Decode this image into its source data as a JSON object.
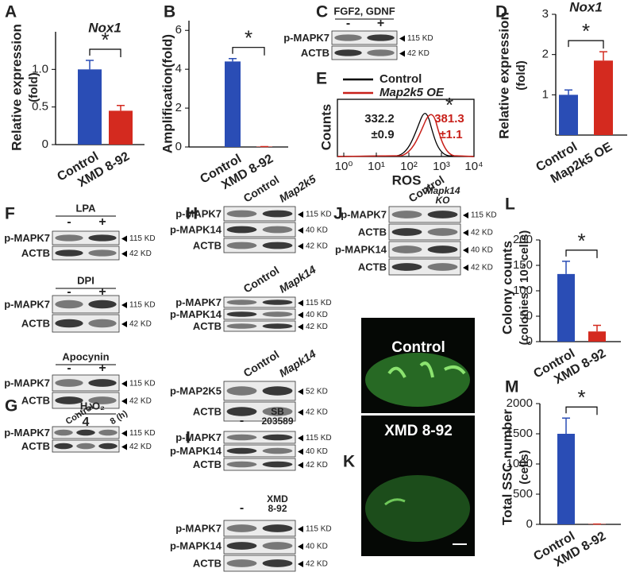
{
  "chart_data": [
    {
      "type": "bar",
      "panel": "A",
      "title": "Nox1",
      "ylabel": [
        "Relative expression",
        "(fold)"
      ],
      "categories": [
        "Control",
        "XMD 8-92"
      ],
      "values": [
        1.0,
        0.45
      ],
      "errors": [
        0.12,
        0.07
      ],
      "colors": [
        "#2a4db5",
        "#d42a1f"
      ],
      "ylim": [
        0,
        1.5
      ],
      "yticks": [
        0,
        0.5,
        {
          "value": 1,
          "label": "1.0"
        }
      ],
      "annotation": "*"
    },
    {
      "type": "bar",
      "panel": "B",
      "ylabel": [
        "Amplification(fold)"
      ],
      "categories": [
        "Control",
        "XMD 8-92"
      ],
      "values": [
        4.4,
        0.02
      ],
      "errors": [
        0.15,
        0
      ],
      "colors": [
        "#2a4db5",
        "#d42a1f"
      ],
      "ylim": [
        0,
        6.5
      ],
      "yticks": [
        0,
        2,
        4,
        6
      ],
      "annotation": "*"
    },
    {
      "type": "bar",
      "panel": "D",
      "title": "Nox1",
      "ylabel": [
        "Relative expression",
        "(fold)"
      ],
      "categories": [
        "Control",
        "Map2k5 OE"
      ],
      "values": [
        1.0,
        1.85
      ],
      "errors": [
        0.12,
        0.22
      ],
      "colors": [
        "#2a4db5",
        "#d42a1f"
      ],
      "ylim": [
        0,
        3
      ],
      "yticks": [
        1,
        2,
        3
      ],
      "annotation": "*"
    },
    {
      "type": "bar",
      "panel": "L",
      "ylabel": [
        "Colony counts",
        "(colonies / 10⁵ cells)"
      ],
      "categories": [
        "Control",
        "XMD 8-92"
      ],
      "values": [
        133,
        20
      ],
      "errors": [
        25,
        12
      ],
      "colors": [
        "#2a4db5",
        "#d42a1f"
      ],
      "ylim": [
        0,
        200
      ],
      "yticks": [
        0,
        50,
        100,
        150,
        200
      ],
      "annotation": "*"
    },
    {
      "type": "bar",
      "panel": "M",
      "ylabel": [
        "Total SSC number",
        "(cells)"
      ],
      "categories": [
        "Control",
        "XMD 8-92"
      ],
      "values": [
        1500,
        5
      ],
      "errors": [
        260,
        0
      ],
      "colors": [
        "#2a4db5",
        "#d42a1f"
      ],
      "ylim": [
        0,
        2000
      ],
      "yticks": [
        0,
        500,
        1000,
        1500,
        2000
      ],
      "annotation": "*"
    }
  ],
  "flow": {
    "panel": "E",
    "legend": [
      "Control",
      "Map2k5 OE"
    ],
    "ylabel": "Counts",
    "xlabel": "ROS",
    "xtick_labels": [
      "10⁰",
      "10¹",
      "10²",
      "10³",
      "10⁴"
    ],
    "stats": [
      [
        "332.2",
        "±0.9"
      ],
      [
        "381.3",
        "±1.1"
      ]
    ],
    "annotation": "*"
  },
  "blots": [
    {
      "panel": "C",
      "groups": [
        {
          "treatment": "FGF2, GDNF",
          "lanes": [
            "-",
            "+"
          ],
          "rows": [
            {
              "label": "p-MAPK7",
              "size": "115 KD"
            },
            {
              "label": "ACTB",
              "size": "42 KD"
            }
          ]
        }
      ]
    },
    {
      "panel": "F",
      "groups": [
        {
          "treatment": "LPA",
          "lanes": [
            "-",
            "+"
          ],
          "rows": [
            {
              "label": "p-MAPK7",
              "size": "115 KD"
            },
            {
              "label": "ACTB",
              "size": "42 KD"
            }
          ]
        },
        {
          "treatment": "DPI",
          "lanes": [
            "-",
            "+"
          ],
          "rows": [
            {
              "label": "p-MAPK7",
              "size": "115 KD"
            },
            {
              "label": "ACTB",
              "size": "42 KD"
            }
          ]
        },
        {
          "treatment": "Apocynin",
          "lanes": [
            "-",
            "+"
          ],
          "rows": [
            {
              "label": "p-MAPK7",
              "size": "115 KD"
            },
            {
              "label": "ACTB",
              "size": "42 KD"
            }
          ]
        }
      ]
    },
    {
      "panel": "G",
      "groups": [
        {
          "treatment": "H₂O₂",
          "lanes": [
            "Control",
            "4",
            "8 (h)"
          ],
          "rows": [
            {
              "label": "p-MAPK7",
              "size": "115 KD"
            },
            {
              "label": "ACTB",
              "size": "42 KD"
            }
          ]
        }
      ]
    },
    {
      "panel": "H",
      "groups": [
        {
          "lanes": [
            "Control",
            "Map2k5"
          ],
          "rows": [
            {
              "label": "p-MAPK7",
              "size": "115 KD"
            },
            {
              "label": "p-MAPK14",
              "size": "40 KD"
            },
            {
              "label": "ACTB",
              "size": "42 KD"
            }
          ]
        },
        {
          "lanes": [
            "Control",
            "Mapk14"
          ],
          "rows": [
            {
              "label": "p-MAPK7",
              "size": "115 KD"
            },
            {
              "label": "p-MAPK14",
              "size": "40 KD"
            },
            {
              "label": "ACTB",
              "size": "42 KD"
            }
          ]
        },
        {
          "lanes": [
            "Control",
            "Mapk14"
          ],
          "rows": [
            {
              "label": "p-MAP2K5",
              "size": "52 KD"
            },
            {
              "label": "ACTB",
              "size": "42 KD"
            }
          ]
        }
      ]
    },
    {
      "panel": "I",
      "groups": [
        {
          "lanes": [
            "-",
            [
              "SB",
              "203589"
            ]
          ],
          "rows": [
            {
              "label": "p-MAPK7",
              "size": "115 KD"
            },
            {
              "label": "p-MAPK14",
              "size": "40 KD"
            },
            {
              "label": "ACTB",
              "size": "42 KD"
            }
          ]
        },
        {
          "lanes": [
            "-",
            [
              "XMD",
              "8-92"
            ]
          ],
          "rows": [
            {
              "label": "p-MAPK7",
              "size": "115 KD"
            },
            {
              "label": "p-MAPK14",
              "size": "40 KD"
            },
            {
              "label": "ACTB",
              "size": "42 KD"
            }
          ]
        }
      ]
    },
    {
      "panel": "J",
      "groups": [
        {
          "lanes": [
            "Control",
            [
              "Mapk14",
              "KO"
            ]
          ],
          "rows": [
            {
              "label": "p-MAPK7",
              "size": "115 KD"
            },
            {
              "label": "ACTB",
              "size": "42 KD"
            },
            {
              "label": "p-MAPK14",
              "size": "40 KD"
            },
            {
              "label": "ACTB",
              "size": "42 KD"
            }
          ]
        }
      ]
    }
  ],
  "image": {
    "panel": "K",
    "labels": [
      "Control",
      "XMD 8-92"
    ]
  }
}
